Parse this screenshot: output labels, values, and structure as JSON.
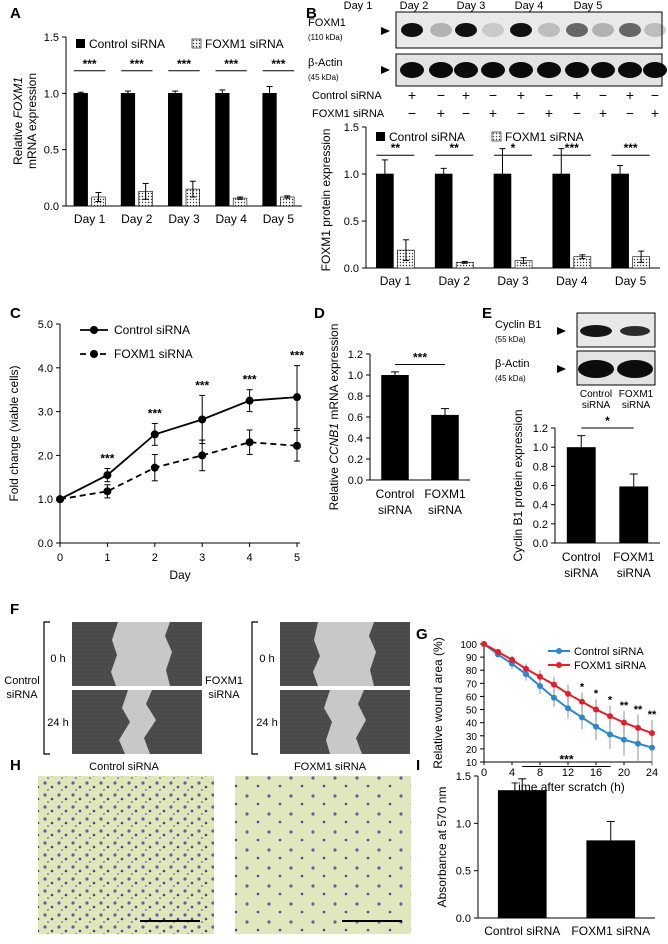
{
  "panel_labels": [
    "A",
    "B",
    "C",
    "D",
    "E",
    "F",
    "G",
    "H",
    "I"
  ],
  "stars": {
    "three": "***",
    "two": "**",
    "one": "*"
  },
  "chart_data": [
    {
      "id": "A",
      "type": "bar",
      "title": "",
      "ylabel_pre": "Relative ",
      "ylabel_italic": "FOXM1",
      "ylabel_line2": "mRNA expression",
      "categories": [
        "Day 1",
        "Day 2",
        "Day 3",
        "Day 4",
        "Day 5"
      ],
      "ylim": [
        0,
        1.5
      ],
      "yticks": [
        "0.0",
        "0.5",
        "1.0",
        "1.5"
      ],
      "series": [
        {
          "name": "Control siRNA",
          "values": [
            1.0,
            1.0,
            1.0,
            1.0,
            1.0
          ],
          "errors": [
            0.01,
            0.02,
            0.02,
            0.03,
            0.06
          ]
        },
        {
          "name": "FOXM1 siRNA",
          "values": [
            0.08,
            0.13,
            0.15,
            0.07,
            0.08
          ],
          "errors": [
            0.04,
            0.07,
            0.07,
            0.01,
            0.01
          ]
        }
      ],
      "significance": [
        "***",
        "***",
        "***",
        "***",
        "***"
      ]
    },
    {
      "id": "B",
      "type": "bar",
      "ylabel": "FOXM1 protein expression",
      "categories": [
        "Day 1",
        "Day 2",
        "Day 3",
        "Day 4",
        "Day 5"
      ],
      "ylim": [
        0,
        1.5
      ],
      "yticks": [
        "0.0",
        "0.5",
        "1.0",
        "1.5"
      ],
      "series": [
        {
          "name": "Control siRNA",
          "values": [
            1.0,
            1.0,
            1.0,
            1.0,
            1.0
          ],
          "errors": [
            0.15,
            0.06,
            0.27,
            0.27,
            0.09
          ]
        },
        {
          "name": "FOXM1 siRNA",
          "values": [
            0.19,
            0.06,
            0.08,
            0.12,
            0.12
          ],
          "errors": [
            0.11,
            0.01,
            0.03,
            0.02,
            0.06
          ]
        }
      ],
      "significance": [
        "**",
        "**",
        "*",
        "***",
        "***"
      ]
    },
    {
      "id": "C",
      "type": "line",
      "xlabel": "Day",
      "ylabel": "Fold change (viable cells)",
      "x": [
        0,
        1,
        2,
        3,
        4,
        5
      ],
      "xticks": [
        "0",
        "1",
        "2",
        "3",
        "4",
        "5"
      ],
      "ylim": [
        0,
        5.0
      ],
      "yticks": [
        "0.0",
        "1.0",
        "2.0",
        "3.0",
        "4.0",
        "5.0"
      ],
      "series": [
        {
          "name": "Control siRNA",
          "style": "solid",
          "values": [
            1.0,
            1.55,
            2.48,
            2.82,
            3.25,
            3.33
          ],
          "errors": [
            0,
            0.15,
            0.25,
            0.55,
            0.25,
            0.72
          ]
        },
        {
          "name": "FOXM1 siRNA",
          "style": "dashed",
          "values": [
            1.0,
            1.18,
            1.72,
            2.0,
            2.3,
            2.22
          ],
          "errors": [
            0,
            0.15,
            0.3,
            0.35,
            0.28,
            0.35
          ]
        }
      ],
      "significance": [
        "",
        "***",
        "***",
        "***",
        "***",
        "***"
      ]
    },
    {
      "id": "D",
      "type": "bar",
      "ylabel_pre": "Relative ",
      "ylabel_italic": "CCNB1",
      "ylabel_post": " mRNA expression",
      "categories": [
        [
          "Control",
          "siRNA"
        ],
        [
          "FOXM1",
          "siRNA"
        ]
      ],
      "ylim": [
        0,
        1.2
      ],
      "yticks": [
        "0.0",
        "0.2",
        "0.4",
        "0.6",
        "0.8",
        "1.0",
        "1.2"
      ],
      "values": [
        1.0,
        0.62
      ],
      "errors": [
        0.03,
        0.06
      ],
      "significance": "***"
    },
    {
      "id": "E",
      "type": "bar",
      "ylabel": "Cyclin B1 protein expression",
      "categories": [
        [
          "Control",
          "siRNA"
        ],
        [
          "FOXM1",
          "siRNA"
        ]
      ],
      "ylim": [
        0,
        1.2
      ],
      "yticks": [
        "0.0",
        "0.2",
        "0.4",
        "0.6",
        "0.8",
        "1.0",
        "1.2"
      ],
      "values": [
        1.0,
        0.59
      ],
      "errors": [
        0.12,
        0.13
      ],
      "significance": "*"
    },
    {
      "id": "G",
      "type": "line",
      "xlabel": "Time after scratch (h)",
      "ylabel": "Relative wound area (%)",
      "x": [
        0,
        2,
        4,
        6,
        8,
        10,
        12,
        14,
        16,
        18,
        20,
        22,
        24
      ],
      "xticks": [
        "0",
        "4",
        "8",
        "12",
        "16",
        "20",
        "24"
      ],
      "ylim": [
        10,
        100
      ],
      "yticks": [
        "10",
        "20",
        "30",
        "40",
        "50",
        "60",
        "70",
        "80",
        "90",
        "100"
      ],
      "series": [
        {
          "name": "Control siRNA",
          "color": "#2e86d1",
          "values": [
            100,
            92,
            85,
            77,
            68,
            59,
            51,
            44,
            37,
            31,
            27,
            24,
            21
          ],
          "errors": [
            0,
            2,
            4,
            5,
            6,
            7,
            8,
            9,
            10,
            11,
            12,
            13,
            14
          ]
        },
        {
          "name": "FOXM1 siRNA",
          "color": "#e0202a",
          "values": [
            100,
            94,
            88,
            81,
            75,
            69,
            62,
            56,
            50,
            45,
            40,
            36,
            32
          ],
          "errors": [
            0,
            2,
            3,
            4,
            5,
            6,
            7,
            7,
            8,
            8,
            9,
            10,
            10
          ]
        }
      ],
      "significance": [
        "",
        "",
        "",
        "",
        "",
        "",
        "",
        "*",
        "*",
        "*",
        "**",
        "**",
        "**"
      ]
    },
    {
      "id": "I",
      "type": "bar",
      "ylabel": "Absorbance at 570 nm",
      "categories": [
        "Control siRNA",
        "FOXM1 siRNA"
      ],
      "ylim": [
        0,
        1.5
      ],
      "yticks": [
        "0.0",
        "0.5",
        "1.0",
        "1.5"
      ],
      "values": [
        1.35,
        0.82
      ],
      "errors": [
        0.12,
        0.2
      ],
      "significance": "***"
    }
  ],
  "western_B": {
    "days": [
      "Day 1",
      "Day 2",
      "Day 3",
      "Day 4",
      "Day 5"
    ],
    "band1": {
      "name": "FOXM1",
      "kda": "(110 kDa)"
    },
    "band2": {
      "name": "β-Actin",
      "kda": "(45 kDa)"
    },
    "row_labels": [
      "Control siRNA",
      "FOXM1 siRNA"
    ],
    "control_signs": [
      "+",
      "−",
      "+",
      "−",
      "+",
      "−",
      "+",
      "−",
      "+",
      "−"
    ],
    "foxm1_signs": [
      "−",
      "+",
      "−",
      "+",
      "−",
      "+",
      "−",
      "+",
      "−",
      "+"
    ]
  },
  "western_E": {
    "band1": {
      "name": "Cyclin B1",
      "kda": "(55 kDa)"
    },
    "band2": {
      "name": "β-Actin",
      "kda": "(45 kDa)"
    },
    "lanes": [
      [
        "Control",
        "siRNA"
      ],
      [
        "FOXM1",
        "siRNA"
      ]
    ]
  },
  "scratch_F": {
    "groups": [
      [
        "Control",
        "siRNA"
      ],
      [
        "FOXM1",
        "siRNA"
      ]
    ],
    "times": [
      "0 h",
      "24 h"
    ]
  },
  "invasion_H": {
    "titles": [
      "Control siRNA",
      "FOXM1 siRNA"
    ]
  }
}
